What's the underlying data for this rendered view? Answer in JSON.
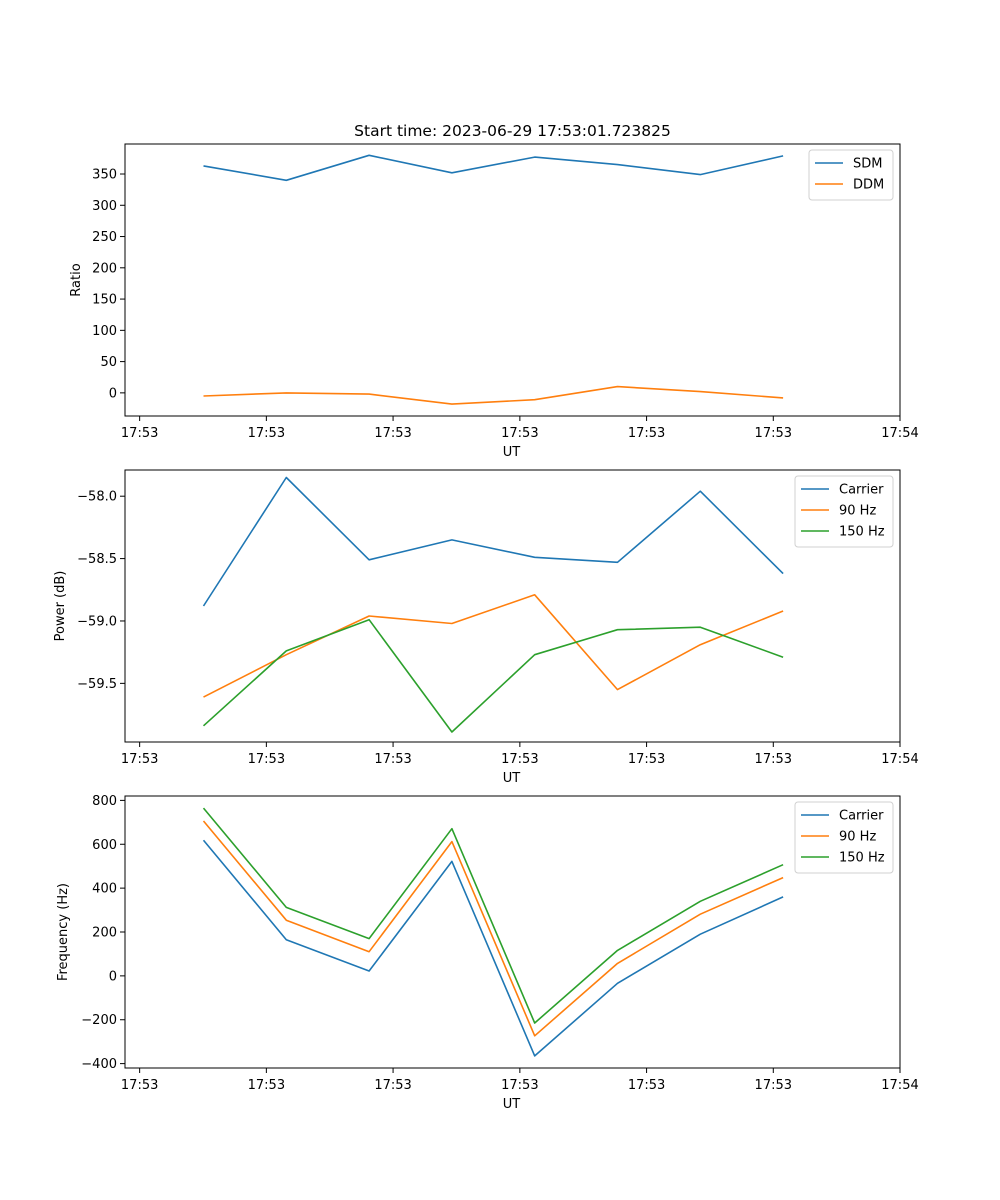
{
  "chart_data": [
    {
      "type": "line",
      "title": "Start time: 2023-06-29 17:53:01.723825",
      "xlabel": "UT",
      "ylabel": "Ratio",
      "x_tick_labels": [
        "17:53",
        "17:53",
        "17:53",
        "17:53",
        "17:53",
        "17:53",
        "17:54"
      ],
      "y_ticks": [
        0,
        50,
        100,
        150,
        200,
        250,
        300,
        350
      ],
      "y_tick_labels": [
        "0",
        "50",
        "100",
        "150",
        "200",
        "250",
        "300",
        "350"
      ],
      "ylim": [
        -37,
        398
      ],
      "legend": "top-right",
      "series": [
        {
          "name": "SDM",
          "color": "#1f77b4",
          "values": [
            363,
            340,
            380,
            352,
            377,
            365,
            349,
            379
          ]
        },
        {
          "name": "DDM",
          "color": "#ff7f0e",
          "values": [
            -5,
            0,
            -2,
            -18,
            -11,
            10,
            2,
            -8
          ]
        }
      ]
    },
    {
      "type": "line",
      "title": "",
      "xlabel": "UT",
      "ylabel": "Power (dB)",
      "x_tick_labels": [
        "17:53",
        "17:53",
        "17:53",
        "17:53",
        "17:53",
        "17:53",
        "17:54"
      ],
      "y_ticks": [
        -59.5,
        -59.0,
        -58.5,
        -58.0
      ],
      "y_tick_labels": [
        "−59.5",
        "−59.0",
        "−58.5",
        "−58.0"
      ],
      "ylim": [
        -59.97,
        -57.79
      ],
      "legend": "top-right",
      "series": [
        {
          "name": "Carrier",
          "color": "#1f77b4",
          "values": [
            -58.88,
            -57.85,
            -58.51,
            -58.35,
            -58.49,
            -58.53,
            -57.96,
            -58.62
          ]
        },
        {
          "name": "90 Hz",
          "color": "#ff7f0e",
          "values": [
            -59.61,
            -59.27,
            -58.96,
            -59.02,
            -58.79,
            -59.55,
            -59.19,
            -58.92
          ]
        },
        {
          "name": "150 Hz",
          "color": "#2ca02c",
          "values": [
            -59.84,
            -59.24,
            -58.99,
            -59.89,
            -59.27,
            -59.07,
            -59.05,
            -59.29
          ]
        }
      ]
    },
    {
      "type": "line",
      "title": "",
      "xlabel": "UT",
      "ylabel": "Frequency (Hz)",
      "x_tick_labels": [
        "17:53",
        "17:53",
        "17:53",
        "17:53",
        "17:53",
        "17:53",
        "17:54"
      ],
      "y_ticks": [
        -400,
        -200,
        0,
        200,
        400,
        600,
        800
      ],
      "y_tick_labels": [
        "−400",
        "−200",
        "0",
        "200",
        "400",
        "600",
        "800"
      ],
      "ylim": [
        -420,
        820
      ],
      "legend": "top-right",
      "series": [
        {
          "name": "Carrier",
          "color": "#1f77b4",
          "values": [
            618,
            165,
            22,
            522,
            -365,
            -34,
            190,
            360
          ]
        },
        {
          "name": "90 Hz",
          "color": "#ff7f0e",
          "values": [
            706,
            254,
            110,
            612,
            -273,
            57,
            281,
            448
          ]
        },
        {
          "name": "150 Hz",
          "color": "#2ca02c",
          "values": [
            765,
            312,
            170,
            671,
            -215,
            116,
            340,
            507
          ]
        }
      ]
    }
  ]
}
